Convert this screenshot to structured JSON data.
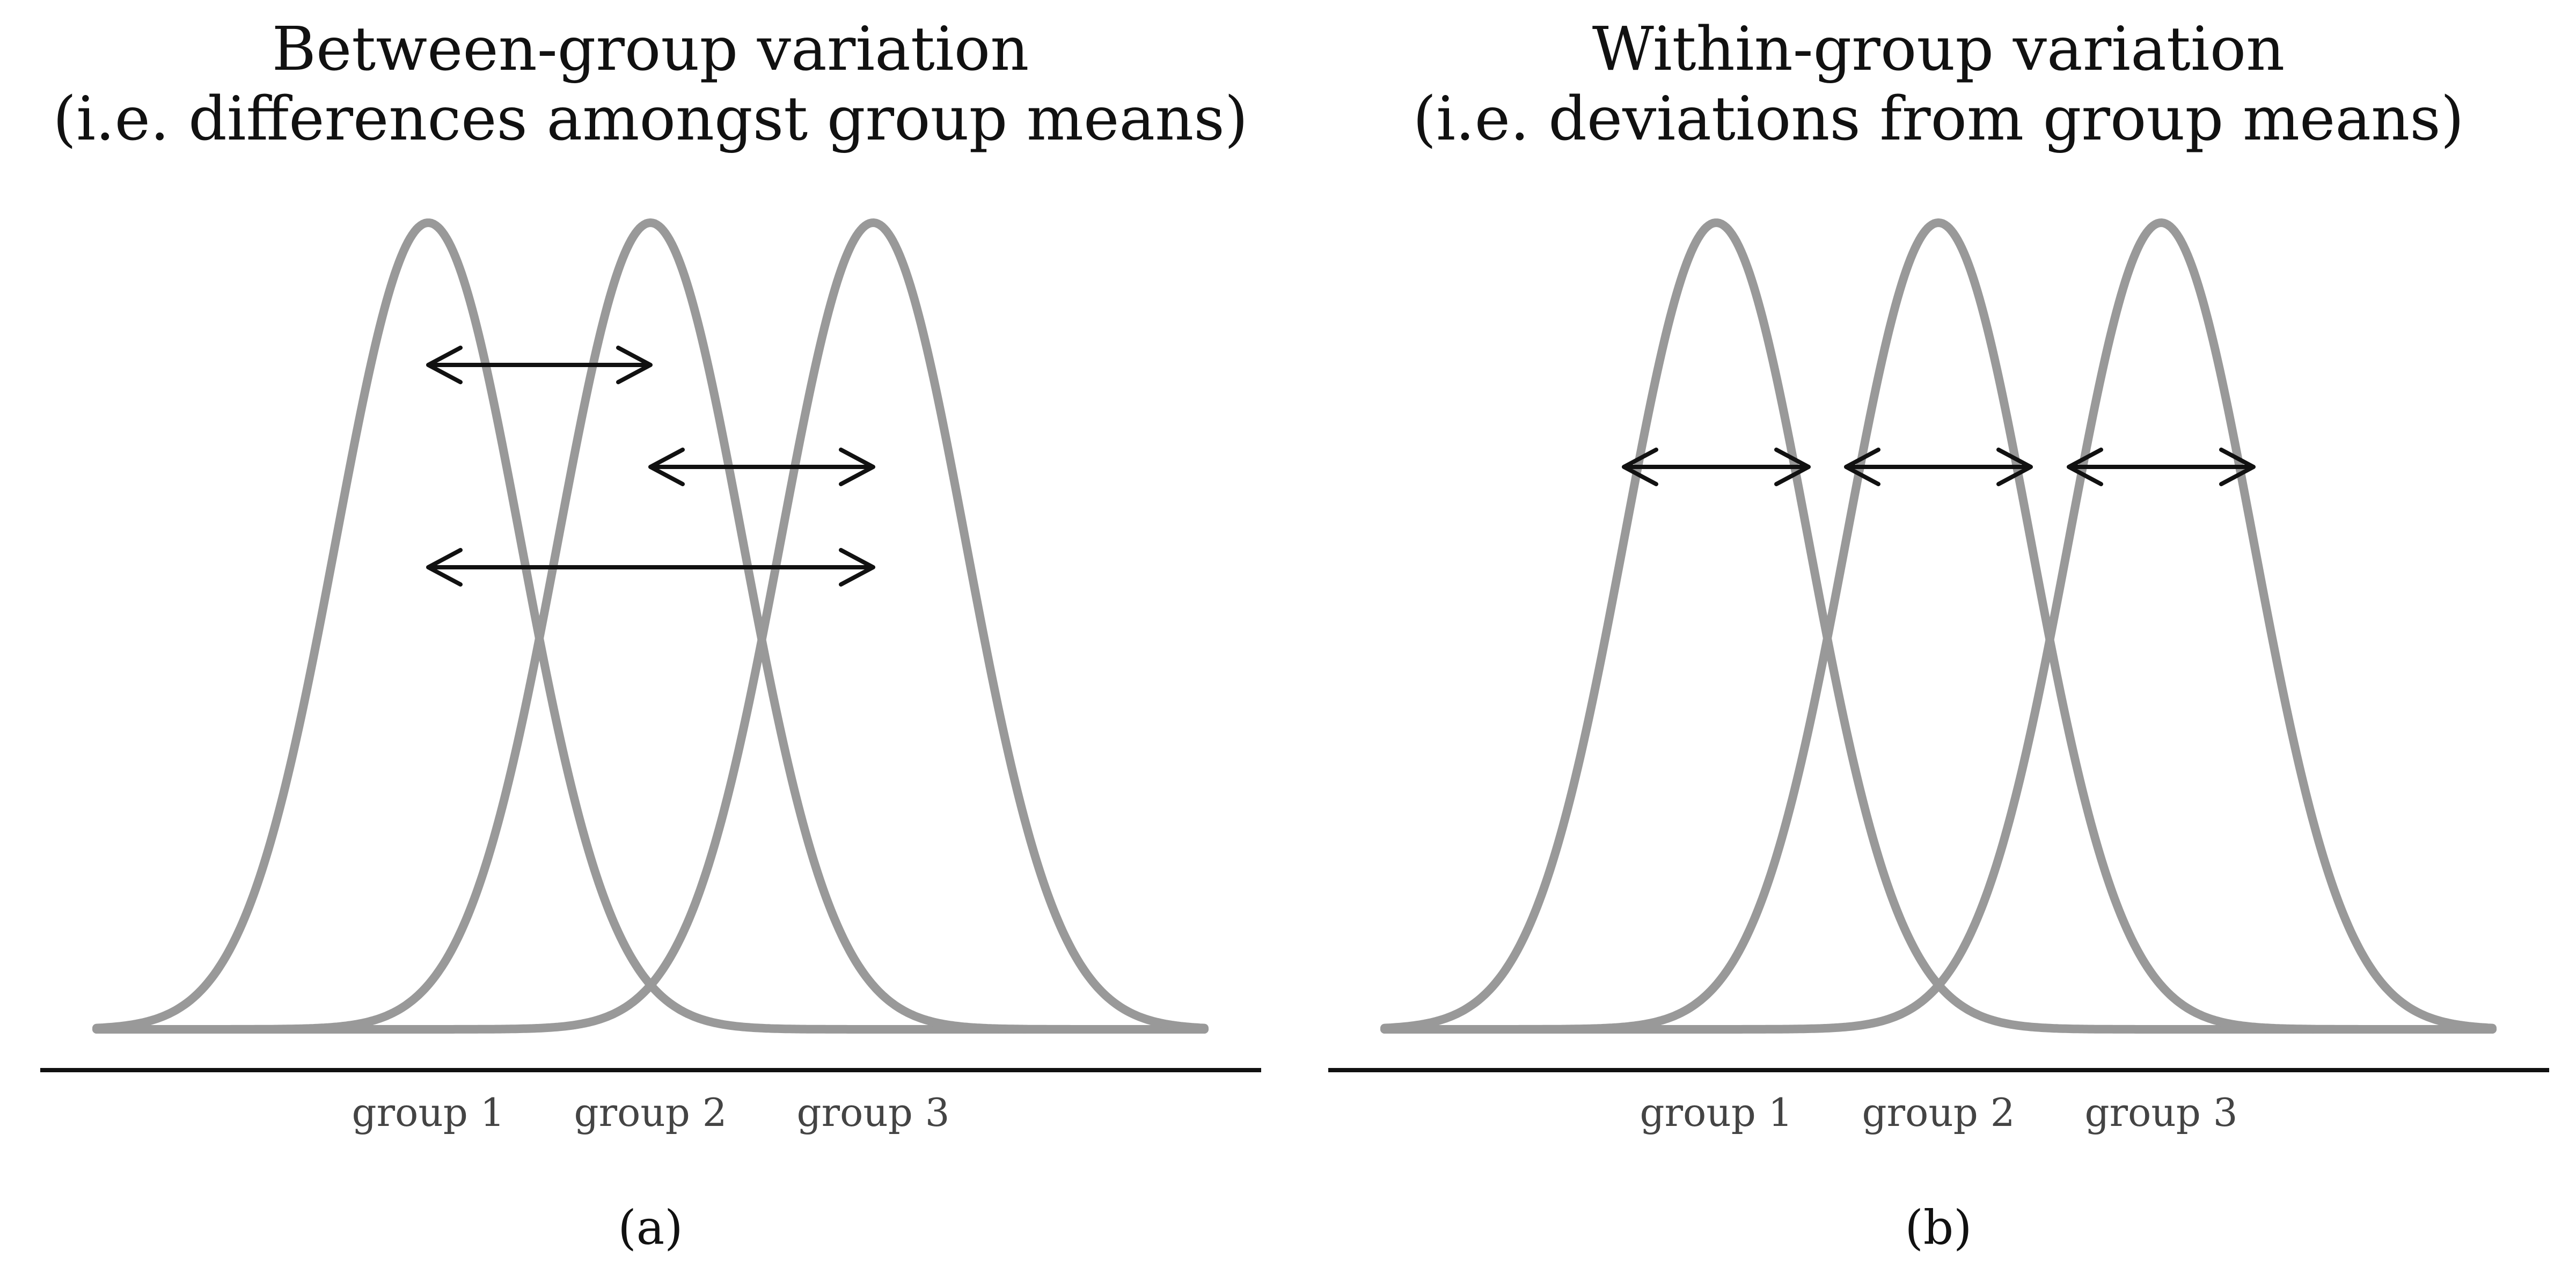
{
  "panels": [
    {
      "id": "a",
      "title_line1": "Between-group variation",
      "title_line2": "(i.e. differences amongst group means)",
      "groups": [
        "group 1",
        "group 2",
        "group 3"
      ],
      "label": "(a)",
      "arrows": [
        {
          "from_group": 1,
          "to_group": 2
        },
        {
          "from_group": 2,
          "to_group": 3
        },
        {
          "from_group": 1,
          "to_group": 3
        }
      ]
    },
    {
      "id": "b",
      "title_line1": "Within-group variation",
      "title_line2": "(i.e. deviations from group means)",
      "groups": [
        "group 1",
        "group 2",
        "group 3"
      ],
      "label": "(b)",
      "arrows": [
        {
          "around_group": 1
        },
        {
          "around_group": 2
        },
        {
          "around_group": 3
        }
      ]
    }
  ],
  "colors": {
    "curve": "#999999",
    "axis": "#111111",
    "arrow": "#111111"
  }
}
